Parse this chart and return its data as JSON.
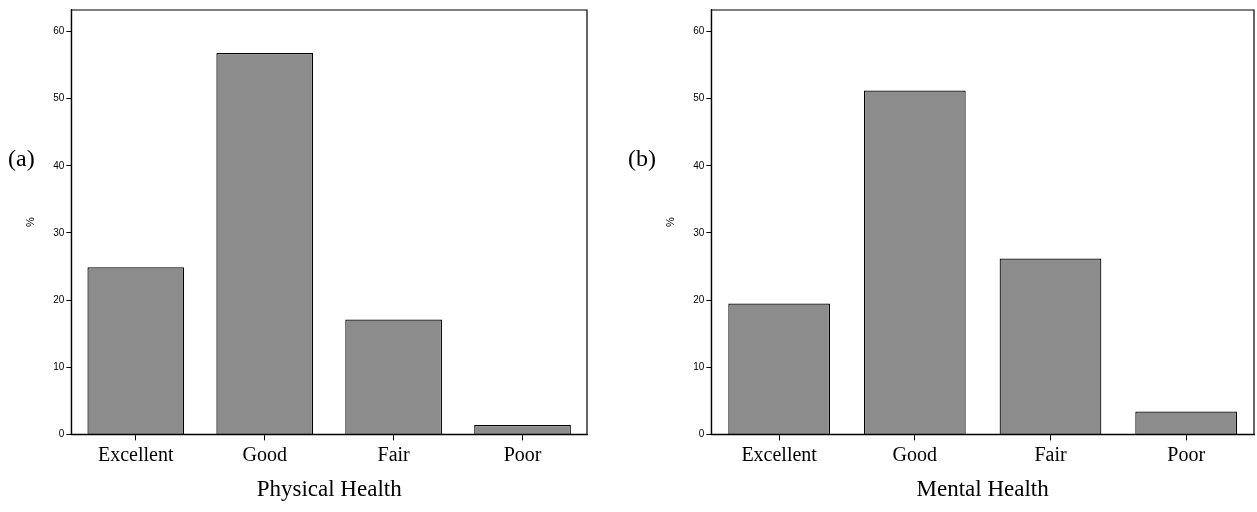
{
  "chart_data": [
    {
      "type": "bar",
      "xlabel": "Physical Health",
      "ylabel": "%",
      "annotations": [
        "(a)"
      ],
      "categories": [
        "Excellent",
        "Good",
        "Fair",
        "Poor"
      ],
      "values": [
        24.9,
        56.8,
        17.1,
        1.4
      ],
      "color": "#8c8c8c",
      "ylim": [
        0,
        63.2
      ],
      "yticks": [
        0,
        10,
        20,
        30,
        40,
        50,
        60
      ],
      "grid": false,
      "legend": false
    },
    {
      "type": "bar",
      "xlabel": "Mental Health",
      "ylabel": "%",
      "annotations": [
        "(b)"
      ],
      "categories": [
        "Excellent",
        "Good",
        "Fair",
        "Poor"
      ],
      "values": [
        19.5,
        51.2,
        26.2,
        3.4
      ],
      "color": "#8c8c8c",
      "ylim": [
        0,
        63.2
      ],
      "yticks": [
        0,
        10,
        20,
        30,
        40,
        50,
        60
      ],
      "grid": false,
      "legend": false
    }
  ]
}
